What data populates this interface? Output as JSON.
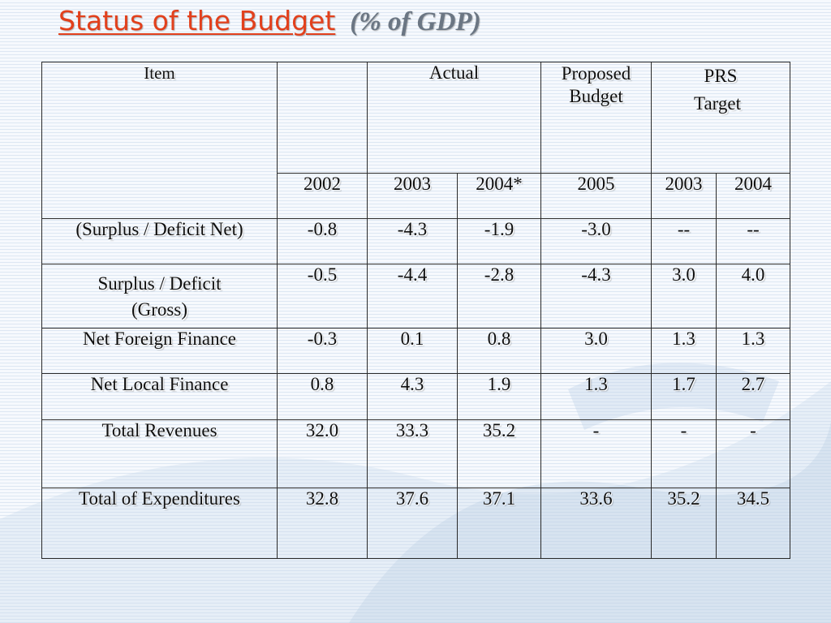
{
  "slide": {
    "title": "Status of the Budget",
    "subtitle": "(% of GDP)"
  },
  "table": {
    "header": {
      "item": "Item",
      "blank": "",
      "actual": "Actual",
      "proposed_line1": "Proposed",
      "proposed_line2": "Budget",
      "prs_line1": "PRS",
      "prs_line2": "Target"
    },
    "years": [
      "2002",
      "2003",
      "2004*",
      "2005",
      "2003",
      "2004"
    ],
    "rows": [
      {
        "label": "(Surplus / Deficit Net)",
        "values": [
          "-0.8",
          "-4.3",
          "-1.9",
          "-3.0",
          "--",
          "--"
        ]
      },
      {
        "label_line1": "Surplus / Deficit",
        "label_line2": "(Gross)",
        "values": [
          "-0.5",
          "-4.4",
          "-2.8",
          "-4.3",
          "3.0",
          "4.0"
        ]
      },
      {
        "label": "Net Foreign Finance",
        "values": [
          "-0.3",
          "0.1",
          "0.8",
          "3.0",
          "1.3",
          "1.3"
        ]
      },
      {
        "label": "Net Local Finance",
        "values": [
          "0.8",
          "4.3",
          "1.9",
          "1.3",
          "1.7",
          "2.7"
        ]
      },
      {
        "label": "Total Revenues",
        "values": [
          "32.0",
          "33.3",
          "35.2",
          "-",
          "-",
          "-"
        ]
      },
      {
        "label": "Total of Expenditures",
        "values": [
          "32.8",
          "37.6",
          "37.1",
          "33.6",
          "35.2",
          "34.5"
        ]
      }
    ]
  }
}
